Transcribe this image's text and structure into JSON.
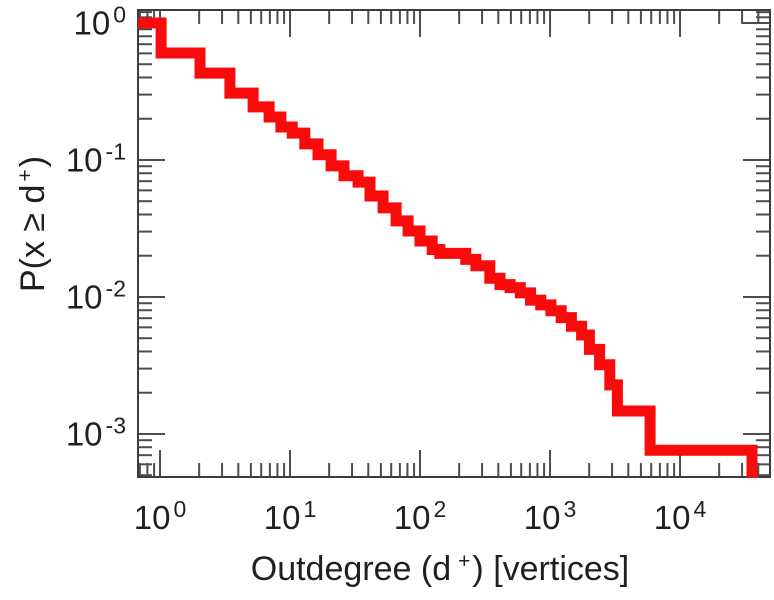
{
  "figure": {
    "background": "#ffffff",
    "curve_color": "#fa0a0a",
    "axis_color": "#3d3d3d",
    "tick_color": "#4d4d4d",
    "text_color": "#1f1f1f"
  },
  "x_axis": {
    "title": {
      "prefix": "Outdegree (d",
      "sup": "+",
      "suffix": ") [vertices]"
    },
    "scale": "log",
    "ticks": [
      {
        "base": "10",
        "exp": "0",
        "value": 1
      },
      {
        "base": "10",
        "exp": "1",
        "value": 10
      },
      {
        "base": "10",
        "exp": "2",
        "value": 100
      },
      {
        "base": "10",
        "exp": "3",
        "value": 1000
      },
      {
        "base": "10",
        "exp": "4",
        "value": 10000
      }
    ],
    "extra_minor_ticks": []
  },
  "y_axis": {
    "title": {
      "prefix": "P(x ≥ d",
      "sup": "+",
      "suffix": ")"
    },
    "scale": "log",
    "ticks": [
      {
        "base": "10",
        "exp": "0",
        "value": 1
      },
      {
        "base": "10",
        "exp": "-1",
        "value": 0.1
      },
      {
        "base": "10",
        "exp": "-2",
        "value": 0.01
      },
      {
        "base": "10",
        "exp": "-3",
        "value": 0.001
      }
    ],
    "extra_minor_ticks": [
      1.1,
      1.2
    ]
  },
  "chart_data": {
    "type": "line",
    "style": "steps-post",
    "title": "",
    "xlabel": "Outdegree (d+) [vertices]",
    "ylabel": "P(x >= d+)",
    "xlim": [
      0.677,
      49200
    ],
    "ylim": [
      0.000485,
      1.244
    ],
    "grid": false,
    "legend": "none",
    "series": [
      {
        "name": "outdegree-ccdf",
        "color": "#fa0a0a",
        "max_x": 35800,
        "points": [
          [
            0.68,
            1.0
          ],
          [
            1.02,
            0.604
          ],
          [
            2.03,
            0.431
          ],
          [
            3.45,
            0.308
          ],
          [
            5.2,
            0.244
          ],
          [
            6.9,
            0.206
          ],
          [
            8.5,
            0.174
          ],
          [
            10.4,
            0.157
          ],
          [
            13.0,
            0.131
          ],
          [
            16.4,
            0.109
          ],
          [
            20.7,
            0.0905
          ],
          [
            26.0,
            0.0767
          ],
          [
            33.4,
            0.069
          ],
          [
            41.2,
            0.0546
          ],
          [
            52.0,
            0.0447
          ],
          [
            65.5,
            0.0359
          ],
          [
            81.0,
            0.0303
          ],
          [
            100,
            0.0256
          ],
          [
            124,
            0.0222
          ],
          [
            142,
            0.0208
          ],
          [
            225,
            0.0188
          ],
          [
            269,
            0.0169
          ],
          [
            344,
            0.0137
          ],
          [
            412,
            0.0123
          ],
          [
            493,
            0.0117
          ],
          [
            591,
            0.0107
          ],
          [
            708,
            0.00948
          ],
          [
            848,
            0.00875
          ],
          [
            1016,
            0.00794
          ],
          [
            1218,
            0.00707
          ],
          [
            1459,
            0.00611
          ],
          [
            1748,
            0.00528
          ],
          [
            2009,
            0.00414
          ],
          [
            2407,
            0.0032
          ],
          [
            2880,
            0.00228
          ],
          [
            3300,
            0.00147
          ],
          [
            5880,
            0.00076
          ]
        ]
      }
    ]
  }
}
